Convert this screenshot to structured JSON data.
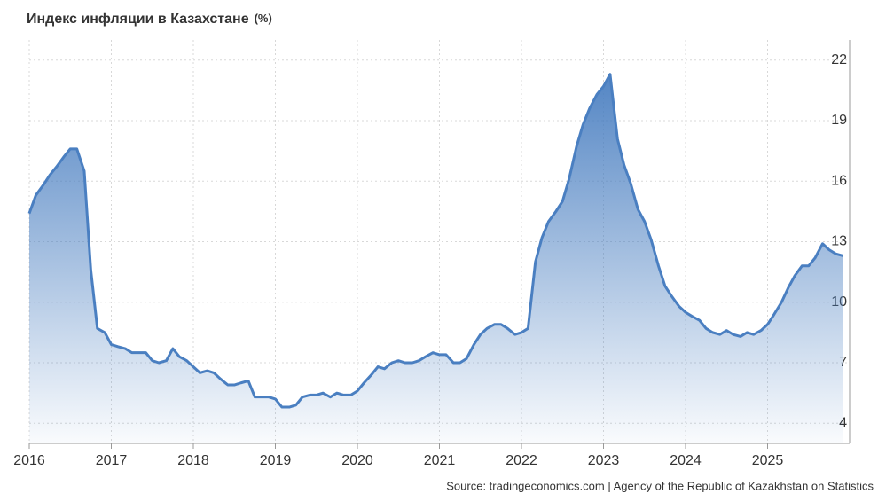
{
  "chart_data": {
    "type": "area",
    "title": "Индекс инфляции в Казахстане",
    "unit": "(%)",
    "source": "Source: tradingeconomics.com | Agency of the Republic of Kazakhstan on Statistics",
    "color": "#4a7fc1",
    "grid": true,
    "xlim": [
      2016,
      2026
    ],
    "xticks": [
      2016,
      2017,
      2018,
      2019,
      2020,
      2021,
      2022,
      2023,
      2024,
      2025
    ],
    "ylim": [
      3,
      23
    ],
    "yticks": [
      4,
      7,
      10,
      13,
      16,
      19,
      22
    ],
    "x": [
      2016,
      2016.08,
      2016.17,
      2016.25,
      2016.33,
      2016.42,
      2016.5,
      2016.58,
      2016.67,
      2016.75,
      2016.83,
      2016.92,
      2017,
      2017.08,
      2017.17,
      2017.25,
      2017.33,
      2017.42,
      2017.5,
      2017.58,
      2017.67,
      2017.75,
      2017.83,
      2017.92,
      2018,
      2018.08,
      2018.17,
      2018.25,
      2018.33,
      2018.42,
      2018.5,
      2018.58,
      2018.67,
      2018.75,
      2018.83,
      2018.92,
      2019,
      2019.08,
      2019.17,
      2019.25,
      2019.33,
      2019.42,
      2019.5,
      2019.58,
      2019.67,
      2019.75,
      2019.83,
      2019.92,
      2020,
      2020.08,
      2020.17,
      2020.25,
      2020.33,
      2020.42,
      2020.5,
      2020.58,
      2020.67,
      2020.75,
      2020.83,
      2020.92,
      2021,
      2021.08,
      2021.17,
      2021.25,
      2021.33,
      2021.42,
      2021.5,
      2021.58,
      2021.67,
      2021.75,
      2021.83,
      2021.92,
      2022,
      2022.08,
      2022.17,
      2022.25,
      2022.33,
      2022.42,
      2022.5,
      2022.58,
      2022.67,
      2022.75,
      2022.83,
      2022.92,
      2023,
      2023.08,
      2023.17,
      2023.25,
      2023.33,
      2023.42,
      2023.5,
      2023.58,
      2023.67,
      2023.75,
      2023.83,
      2023.92,
      2024,
      2024.08,
      2024.17,
      2024.25,
      2024.33,
      2024.42,
      2024.5,
      2024.58,
      2024.67,
      2024.75,
      2024.83,
      2024.92,
      2025,
      2025.08,
      2025.17,
      2025.25,
      2025.33,
      2025.42,
      2025.5,
      2025.58,
      2025.67,
      2025.75,
      2025.83,
      2025.92
    ],
    "values": [
      14.4,
      15.3,
      15.8,
      16.3,
      16.7,
      17.2,
      17.6,
      17.6,
      16.5,
      11.6,
      8.7,
      8.5,
      7.9,
      7.8,
      7.7,
      7.5,
      7.5,
      7.5,
      7.1,
      7.0,
      7.1,
      7.7,
      7.3,
      7.1,
      6.8,
      6.5,
      6.6,
      6.5,
      6.2,
      5.9,
      5.9,
      6.0,
      6.1,
      5.3,
      5.3,
      5.3,
      5.2,
      4.8,
      4.8,
      4.9,
      5.3,
      5.4,
      5.4,
      5.5,
      5.3,
      5.5,
      5.4,
      5.4,
      5.6,
      6.0,
      6.4,
      6.8,
      6.7,
      7.0,
      7.1,
      7.0,
      7.0,
      7.1,
      7.3,
      7.5,
      7.4,
      7.4,
      7.0,
      7.0,
      7.2,
      7.9,
      8.4,
      8.7,
      8.9,
      8.9,
      8.7,
      8.4,
      8.5,
      8.7,
      12.0,
      13.2,
      14.0,
      14.5,
      15.0,
      16.1,
      17.7,
      18.8,
      19.6,
      20.3,
      20.7,
      21.3,
      18.1,
      16.8,
      15.9,
      14.6,
      14.0,
      13.1,
      11.8,
      10.8,
      10.3,
      9.8,
      9.5,
      9.3,
      9.1,
      8.7,
      8.5,
      8.4,
      8.6,
      8.4,
      8.3,
      8.5,
      8.4,
      8.6,
      8.9,
      9.4,
      10.0,
      10.7,
      11.3,
      11.8,
      11.8,
      12.2,
      12.9,
      12.6,
      12.4,
      12.3
    ]
  }
}
